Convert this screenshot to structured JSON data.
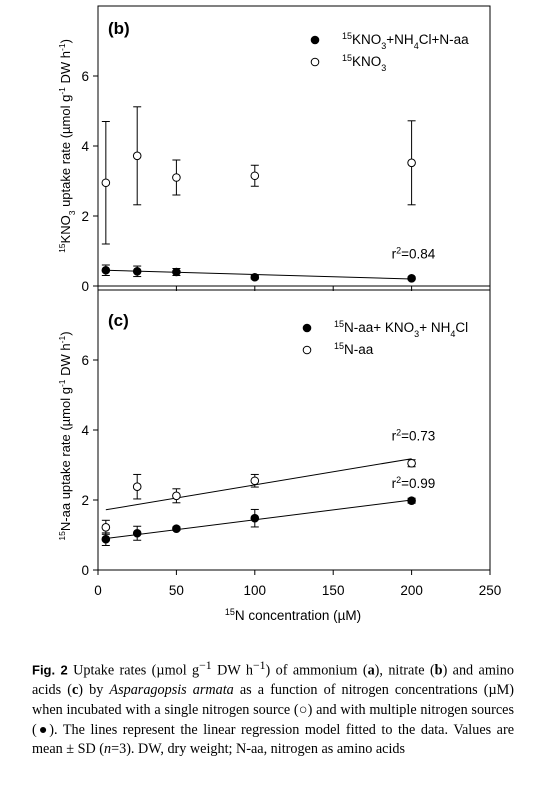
{
  "chart_data": [
    {
      "type": "scatter",
      "panel_label": "(b)",
      "ylabel": "15KNO3 uptake rate (µmol g-1 DW h-1)",
      "ylim": [
        0,
        8
      ],
      "yticks": [
        0,
        2,
        4,
        6
      ],
      "xlim": [
        0,
        250
      ],
      "xticks": [
        0,
        50,
        100,
        150,
        200,
        250
      ],
      "series": [
        {
          "name": "15KNO3+NH4Cl+N-aa",
          "marker": "filled-circle",
          "x": [
            5,
            25,
            50,
            100,
            200
          ],
          "y": [
            0.45,
            0.42,
            0.4,
            0.25,
            0.22
          ],
          "err": [
            0.15,
            0.15,
            0.1,
            0.05,
            0.04
          ],
          "fit": {
            "x": [
              5,
              200
            ],
            "y": [
              0.45,
              0.2
            ]
          }
        },
        {
          "name": "15KNO3",
          "marker": "open-circle",
          "x": [
            5,
            25,
            50,
            100,
            200
          ],
          "y": [
            2.95,
            3.72,
            3.1,
            3.15,
            3.52
          ],
          "err": [
            1.75,
            1.4,
            0.5,
            0.3,
            1.2
          ]
        }
      ],
      "annotations": [
        {
          "text": "r2=0.84",
          "x": 200,
          "y": 0.78
        }
      ],
      "legend": [
        {
          "text": "15KNO3+NH4Cl+N-aa",
          "marker": "filled-circle"
        },
        {
          "text": "15KNO3",
          "marker": "open-circle"
        }
      ]
    },
    {
      "type": "scatter",
      "panel_label": "(c)",
      "xlabel": "15N concentration (µM)",
      "ylabel": "15N-aa uptake rate (µmol g-1 DW h-1)",
      "ylim": [
        0,
        8
      ],
      "yticks": [
        0,
        2,
        4,
        6
      ],
      "xlim": [
        0,
        250
      ],
      "xticks": [
        0,
        50,
        100,
        150,
        200,
        250
      ],
      "series": [
        {
          "name": "15N-aa+ KNO3+ NH4Cl",
          "marker": "filled-circle",
          "x": [
            5,
            25,
            50,
            100,
            200
          ],
          "y": [
            0.88,
            1.05,
            1.18,
            1.48,
            1.98
          ],
          "err": [
            0.18,
            0.2,
            0.05,
            0.25,
            0.07
          ],
          "fit": {
            "x": [
              5,
              200
            ],
            "y": [
              0.9,
              2.0
            ]
          }
        },
        {
          "name": "15N-aa",
          "marker": "open-circle",
          "x": [
            5,
            25,
            50,
            100,
            200
          ],
          "y": [
            1.22,
            2.38,
            2.12,
            2.55,
            3.05
          ],
          "err": [
            0.2,
            0.35,
            0.2,
            0.18,
            0.1
          ],
          "fit": {
            "x": [
              5,
              200
            ],
            "y": [
              1.72,
              3.18
            ]
          }
        }
      ],
      "annotations": [
        {
          "text": "r2=0.73",
          "x": 200,
          "y": 3.7
        },
        {
          "text": "r2=0.99",
          "x": 200,
          "y": 2.35
        }
      ],
      "legend": [
        {
          "text": "15N-aa+ KNO3+ NH4Cl",
          "marker": "filled-circle"
        },
        {
          "text": "15N-aa",
          "marker": "open-circle"
        }
      ]
    }
  ],
  "caption": {
    "lead": "Fig. 2",
    "t1": "Uptake rates (µmol g",
    "t1_sup": "−1",
    "t2": " DW h",
    "t2_sup": "−1",
    "t3": ") of ammonium (",
    "a": "a",
    "t4": "), nitrate (",
    "b": "b",
    "t5": ") and amino acids (",
    "c": "c",
    "t6": ") by ",
    "species": "Asparagopsis armata",
    "t7": " as a function of nitrogen concentrations (µM) when incubated with a single nitrogen source (○) and with multiple nitrogen sources (●). The lines represent the linear regression model fitted to the data. Values are mean ± SD (",
    "n": "n",
    "t8": "=3). DW, dry weight; N-aa, nitrogen as amino acids"
  }
}
